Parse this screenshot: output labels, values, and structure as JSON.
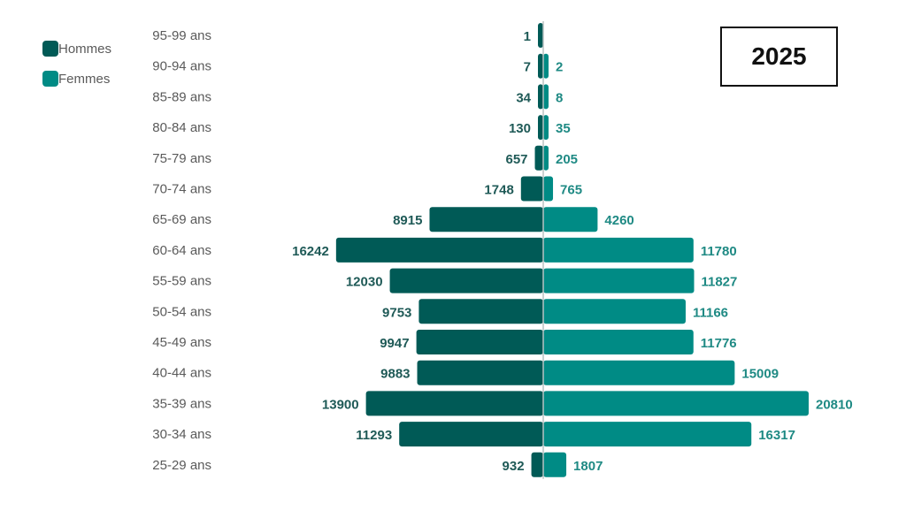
{
  "year": "2025",
  "legend": {
    "men_label": "Hommes",
    "women_label": "Femmes"
  },
  "colors": {
    "men": "#005a56",
    "women": "#008b85",
    "men_label": "#1f5a57",
    "women_label": "#1f8a84",
    "axis_label": "#5a5a5a",
    "center_line": "#b8c2c2"
  },
  "chart_data": {
    "type": "bar",
    "orientation": "horizontal-pyramid",
    "categories": [
      "95-99 ans",
      "90-94 ans",
      "85-89 ans",
      "80-84 ans",
      "75-79 ans",
      "70-74 ans",
      "65-69 ans",
      "60-64 ans",
      "55-59 ans",
      "50-54 ans",
      "45-49 ans",
      "40-44 ans",
      "35-39 ans",
      "30-34 ans",
      "25-29 ans"
    ],
    "series": [
      {
        "name": "Hommes",
        "side": "left",
        "values": [
          1,
          7,
          34,
          130,
          657,
          1748,
          8915,
          16242,
          12030,
          9753,
          9947,
          9883,
          13900,
          11293,
          932
        ]
      },
      {
        "name": "Femmes",
        "side": "right",
        "values": [
          null,
          2,
          8,
          35,
          205,
          765,
          4260,
          11780,
          11827,
          11166,
          11776,
          15009,
          20810,
          16317,
          1807
        ]
      }
    ],
    "legend_position": "top-left",
    "grid": false
  }
}
